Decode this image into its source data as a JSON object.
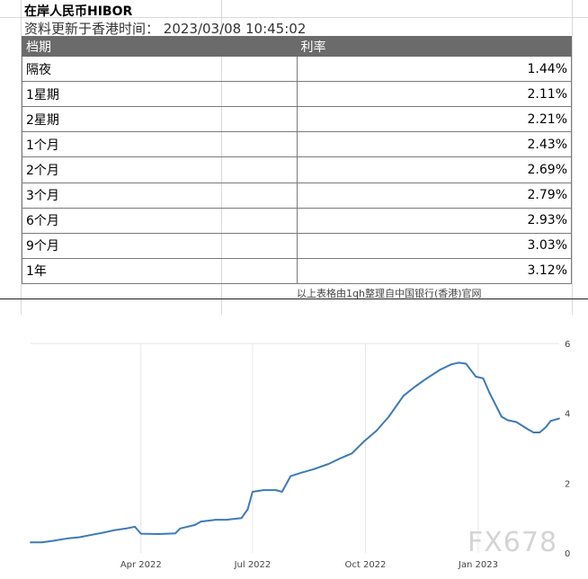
{
  "sheet": {
    "title": "在岸人民币HIBOR",
    "update_time": "资料更新于香港时间： 2023/03/08 10:45:02",
    "source_note": "以上表格由1qh整理自中国银行(香港)官网"
  },
  "table": {
    "headers": [
      "档期",
      "利率"
    ],
    "rows": [
      {
        "period": "隔夜",
        "rate": "1.44%"
      },
      {
        "period": "1星期",
        "rate": "2.11%"
      },
      {
        "period": "2星期",
        "rate": "2.21%"
      },
      {
        "period": "1个月",
        "rate": "2.43%"
      },
      {
        "period": "2个月",
        "rate": "2.69%"
      },
      {
        "period": "3个月",
        "rate": "2.79%"
      },
      {
        "period": "6个月",
        "rate": "2.93%"
      },
      {
        "period": "9个月",
        "rate": "3.03%"
      },
      {
        "period": "1年",
        "rate": "3.12%"
      }
    ]
  },
  "watermark": "FX678",
  "chart_data": {
    "type": "line",
    "title": "",
    "xlabel": "",
    "ylabel": "",
    "xlim": [
      "2022-01-01",
      "2023-03-08"
    ],
    "ylim": [
      0,
      6
    ],
    "x_ticks": [
      "Apr 2022",
      "Jul 2022",
      "Oct 2022",
      "Jan 2023"
    ],
    "y_ticks": [
      0,
      2,
      4,
      6
    ],
    "y_axis_side": "right",
    "grid": "vertical",
    "line_color": "#3d7ab8",
    "series": [
      {
        "x": [
          "2022-01-01",
          "2022-01-10",
          "2022-01-20",
          "2022-02-01",
          "2022-02-10",
          "2022-02-20",
          "2022-03-01",
          "2022-03-10",
          "2022-03-20",
          "2022-03-27",
          "2022-04-01",
          "2022-04-15",
          "2022-04-29",
          "2022-05-03",
          "2022-05-15",
          "2022-05-20",
          "2022-06-01",
          "2022-06-10",
          "2022-06-22",
          "2022-06-27",
          "2022-07-01",
          "2022-07-10",
          "2022-07-20",
          "2022-07-25",
          "2022-08-01",
          "2022-08-10",
          "2022-08-20",
          "2022-09-01",
          "2022-09-10",
          "2022-09-20",
          "2022-09-30",
          "2022-10-10",
          "2022-10-20",
          "2022-11-01",
          "2022-11-10",
          "2022-11-20",
          "2022-12-01",
          "2022-12-10",
          "2022-12-16",
          "2022-12-22",
          "2022-12-30",
          "2023-01-05",
          "2023-01-10",
          "2023-01-20",
          "2023-01-25",
          "2023-02-01",
          "2023-02-10",
          "2023-02-15",
          "2023-02-20",
          "2023-02-25",
          "2023-03-01",
          "2023-03-08"
        ],
        "y": [
          0.3,
          0.3,
          0.35,
          0.42,
          0.45,
          0.52,
          0.58,
          0.65,
          0.7,
          0.75,
          0.55,
          0.54,
          0.56,
          0.7,
          0.8,
          0.9,
          0.95,
          0.95,
          1.0,
          1.25,
          1.75,
          1.8,
          1.8,
          1.75,
          2.2,
          2.3,
          2.4,
          2.55,
          2.7,
          2.85,
          3.2,
          3.5,
          3.9,
          4.5,
          4.75,
          5.0,
          5.25,
          5.4,
          5.45,
          5.42,
          5.05,
          5.0,
          4.6,
          3.9,
          3.8,
          3.75,
          3.55,
          3.45,
          3.45,
          3.6,
          3.78,
          3.85
        ]
      }
    ]
  }
}
